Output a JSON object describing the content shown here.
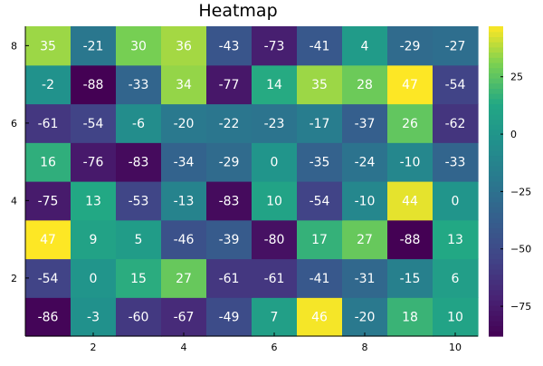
{
  "chart_data": {
    "type": "heatmap",
    "title": "Heatmap",
    "xlabel": "",
    "ylabel": "",
    "x": [
      1,
      2,
      3,
      4,
      5,
      6,
      7,
      8,
      9,
      10
    ],
    "y": [
      1,
      2,
      3,
      4,
      5,
      6,
      7,
      8
    ],
    "x_ticks": [
      2,
      4,
      6,
      8,
      10
    ],
    "y_ticks": [
      2,
      4,
      6,
      8
    ],
    "colorbar_ticks": [
      25,
      0,
      -25,
      -50,
      -75
    ],
    "colorbar_tick_labels": [
      "25",
      "0",
      "−25",
      "−50",
      "−75"
    ],
    "colormap": "viridis",
    "clim": [
      -88,
      47
    ],
    "grid": false,
    "values": [
      [
        -86,
        -3,
        -60,
        -67,
        -49,
        7,
        46,
        -20,
        18,
        10
      ],
      [
        -54,
        0,
        15,
        27,
        -61,
        -61,
        -41,
        -31,
        -15,
        6
      ],
      [
        47,
        9,
        5,
        -46,
        -39,
        -80,
        17,
        27,
        -88,
        13
      ],
      [
        -75,
        13,
        -53,
        -13,
        -83,
        10,
        -54,
        -10,
        44,
        0
      ],
      [
        16,
        -76,
        -83,
        -34,
        -29,
        0,
        -35,
        -24,
        -10,
        -33
      ],
      [
        -61,
        -54,
        -6,
        -20,
        -22,
        -23,
        -17,
        -37,
        26,
        -62
      ],
      [
        -2,
        -88,
        -33,
        34,
        -77,
        14,
        35,
        28,
        47,
        -54
      ],
      [
        35,
        -21,
        30,
        36,
        -43,
        -73,
        -41,
        4,
        -29,
        -27
      ]
    ]
  }
}
